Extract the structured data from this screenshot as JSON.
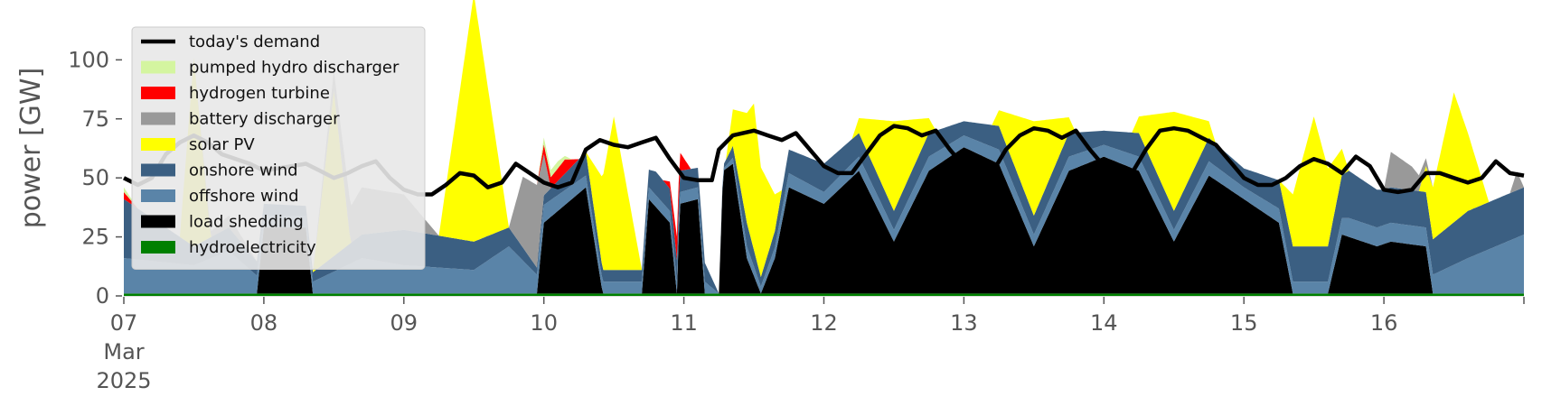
{
  "chart_data": {
    "type": "area",
    "ylabel": "power [GW]",
    "xlabel": "",
    "xlim": [
      0,
      10
    ],
    "ylim": [
      0,
      120
    ],
    "y_ticks": [
      0,
      25,
      50,
      75,
      100
    ],
    "x_ticks": [
      {
        "x": 0,
        "lines": [
          "07",
          "Mar",
          "2025"
        ]
      },
      {
        "x": 1,
        "lines": [
          "08"
        ]
      },
      {
        "x": 2,
        "lines": [
          "09"
        ]
      },
      {
        "x": 3,
        "lines": [
          "10"
        ]
      },
      {
        "x": 4,
        "lines": [
          "11"
        ]
      },
      {
        "x": 5,
        "lines": [
          "12"
        ]
      },
      {
        "x": 6,
        "lines": [
          "13"
        ]
      },
      {
        "x": 7,
        "lines": [
          "14"
        ]
      },
      {
        "x": 8,
        "lines": [
          "15"
        ]
      },
      {
        "x": 9,
        "lines": [
          "16"
        ]
      }
    ],
    "x_unit": "days from 07 Mar 2025 00:00",
    "legend_position": "upper left",
    "legend_entries": [
      {
        "label": "today's demand",
        "color": "#000000",
        "kind": "line"
      },
      {
        "label": "pumped hydro discharger",
        "color": "#d4f5a0",
        "kind": "patch"
      },
      {
        "label": "hydrogen turbine",
        "color": "#ff0000",
        "kind": "patch"
      },
      {
        "label": "battery discharger",
        "color": "#999999",
        "kind": "patch"
      },
      {
        "label": "solar PV",
        "color": "#ffff00",
        "kind": "patch"
      },
      {
        "label": "onshore wind",
        "color": "#3b5f82",
        "kind": "patch"
      },
      {
        "label": "offshore wind",
        "color": "#5a84a8",
        "kind": "patch"
      },
      {
        "label": "load shedding",
        "color": "#000000",
        "kind": "patch"
      },
      {
        "label": "hydroelectricity",
        "color": "#008000",
        "kind": "patch"
      }
    ],
    "series": [
      {
        "name": "hydroelectricity",
        "color": "#008000",
        "points": [
          [
            0,
            1
          ],
          [
            1,
            1
          ],
          [
            2,
            1
          ],
          [
            3,
            1
          ],
          [
            4,
            1
          ],
          [
            5,
            1
          ],
          [
            6,
            1
          ],
          [
            7,
            1
          ],
          [
            8,
            1
          ],
          [
            9,
            1
          ],
          [
            10,
            1
          ]
        ]
      },
      {
        "name": "load shedding",
        "color": "#000000",
        "points": [
          [
            0,
            0
          ],
          [
            0.95,
            0
          ],
          [
            1.0,
            28
          ],
          [
            1.3,
            28
          ],
          [
            1.35,
            0
          ],
          [
            2.95,
            0
          ],
          [
            3.0,
            30
          ],
          [
            3.3,
            45
          ],
          [
            3.42,
            0
          ],
          [
            3.7,
            0
          ],
          [
            3.75,
            40
          ],
          [
            3.9,
            30
          ],
          [
            3.95,
            0
          ],
          [
            3.97,
            38
          ],
          [
            4.1,
            40
          ],
          [
            4.15,
            0
          ],
          [
            4.25,
            0
          ],
          [
            4.28,
            52
          ],
          [
            4.35,
            55
          ],
          [
            4.45,
            15
          ],
          [
            4.55,
            0
          ],
          [
            4.65,
            15
          ],
          [
            4.75,
            45
          ],
          [
            5.0,
            38
          ],
          [
            5.25,
            52
          ],
          [
            5.5,
            22
          ],
          [
            5.75,
            52
          ],
          [
            6.0,
            62
          ],
          [
            6.25,
            55
          ],
          [
            6.5,
            20
          ],
          [
            6.75,
            52
          ],
          [
            7.0,
            58
          ],
          [
            7.25,
            52
          ],
          [
            7.5,
            22
          ],
          [
            7.75,
            50
          ],
          [
            8.0,
            40
          ],
          [
            8.25,
            30
          ],
          [
            8.35,
            0
          ],
          [
            8.6,
            0
          ],
          [
            8.7,
            25
          ],
          [
            8.95,
            20
          ],
          [
            9.05,
            22
          ],
          [
            9.3,
            20
          ],
          [
            9.35,
            0
          ],
          [
            10,
            0
          ]
        ]
      },
      {
        "name": "offshore wind",
        "color": "#5a84a8",
        "points": [
          [
            0,
            15
          ],
          [
            0.5,
            12
          ],
          [
            0.75,
            18
          ],
          [
            1.0,
            5
          ],
          [
            1.35,
            5
          ],
          [
            1.7,
            15
          ],
          [
            2.0,
            12
          ],
          [
            2.5,
            10
          ],
          [
            2.75,
            20
          ],
          [
            2.95,
            8
          ],
          [
            3.3,
            5
          ],
          [
            3.42,
            5
          ],
          [
            3.7,
            5
          ],
          [
            3.8,
            5
          ],
          [
            4.15,
            5
          ],
          [
            4.25,
            0
          ],
          [
            4.45,
            5
          ],
          [
            4.55,
            3
          ],
          [
            4.75,
            6
          ],
          [
            5.0,
            5
          ],
          [
            5.25,
            6
          ],
          [
            5.5,
            5
          ],
          [
            5.75,
            6
          ],
          [
            6.0,
            5
          ],
          [
            6.25,
            6
          ],
          [
            6.5,
            5
          ],
          [
            6.75,
            6
          ],
          [
            7.0,
            5
          ],
          [
            7.25,
            6
          ],
          [
            7.5,
            5
          ],
          [
            7.75,
            6
          ],
          [
            8.0,
            5
          ],
          [
            8.25,
            6
          ],
          [
            8.35,
            5
          ],
          [
            8.6,
            5
          ],
          [
            8.75,
            8
          ],
          [
            9.35,
            8
          ],
          [
            9.6,
            15
          ],
          [
            10,
            25
          ]
        ]
      },
      {
        "name": "onshore wind",
        "color": "#3b5f82",
        "points": [
          [
            0,
            25
          ],
          [
            0.5,
            8
          ],
          [
            0.75,
            10
          ],
          [
            1.0,
            5
          ],
          [
            1.35,
            4
          ],
          [
            1.7,
            10
          ],
          [
            2.0,
            15
          ],
          [
            2.5,
            12
          ],
          [
            2.75,
            8
          ],
          [
            2.95,
            3
          ],
          [
            3.3,
            10
          ],
          [
            3.42,
            5
          ],
          [
            3.7,
            5
          ],
          [
            3.8,
            10
          ],
          [
            4.15,
            8
          ],
          [
            4.25,
            0
          ],
          [
            4.45,
            10
          ],
          [
            4.55,
            4
          ],
          [
            4.75,
            10
          ],
          [
            5.0,
            12
          ],
          [
            5.25,
            10
          ],
          [
            5.5,
            8
          ],
          [
            5.75,
            10
          ],
          [
            6.0,
            6
          ],
          [
            6.25,
            10
          ],
          [
            6.5,
            8
          ],
          [
            6.75,
            10
          ],
          [
            7.0,
            6
          ],
          [
            7.25,
            10
          ],
          [
            7.5,
            8
          ],
          [
            7.75,
            10
          ],
          [
            8.0,
            8
          ],
          [
            8.25,
            12
          ],
          [
            8.35,
            15
          ],
          [
            8.6,
            15
          ],
          [
            8.75,
            20
          ],
          [
            9.0,
            15
          ],
          [
            9.35,
            15
          ],
          [
            9.6,
            20
          ],
          [
            10,
            20
          ]
        ]
      },
      {
        "name": "solar PV",
        "color": "#ffff00",
        "points": [
          [
            0,
            0
          ],
          [
            0.4,
            0
          ],
          [
            0.5,
            80
          ],
          [
            0.62,
            0
          ],
          [
            1.35,
            0
          ],
          [
            1.5,
            70
          ],
          [
            1.62,
            0
          ],
          [
            2.25,
            0
          ],
          [
            2.5,
            105
          ],
          [
            2.75,
            0
          ],
          [
            3.3,
            0
          ],
          [
            3.5,
            65
          ],
          [
            3.7,
            0
          ],
          [
            4.3,
            0
          ],
          [
            4.5,
            62
          ],
          [
            4.7,
            0
          ],
          [
            5.2,
            0
          ],
          [
            5.5,
            38
          ],
          [
            5.8,
            0
          ],
          [
            6.2,
            0
          ],
          [
            6.5,
            40
          ],
          [
            6.8,
            0
          ],
          [
            7.2,
            0
          ],
          [
            7.5,
            42
          ],
          [
            7.8,
            0
          ],
          [
            8.25,
            0
          ],
          [
            8.5,
            55
          ],
          [
            8.75,
            0
          ],
          [
            9.25,
            0
          ],
          [
            9.5,
            55
          ],
          [
            9.75,
            0
          ],
          [
            10,
            0
          ]
        ]
      },
      {
        "name": "battery discharger",
        "color": "#999999",
        "points": [
          [
            0,
            0
          ],
          [
            0.5,
            0
          ],
          [
            0.75,
            5
          ],
          [
            0.95,
            0
          ],
          [
            1.35,
            0
          ],
          [
            1.7,
            20
          ],
          [
            2.0,
            15
          ],
          [
            2.25,
            0
          ],
          [
            2.75,
            0
          ],
          [
            2.85,
            30
          ],
          [
            2.95,
            35
          ],
          [
            3.05,
            0
          ],
          [
            4.8,
            0
          ],
          [
            9.0,
            0
          ],
          [
            9.05,
            15
          ],
          [
            9.2,
            10
          ],
          [
            9.35,
            0
          ],
          [
            9.9,
            0
          ],
          [
            9.95,
            8
          ],
          [
            10,
            0
          ]
        ]
      },
      {
        "name": "hydrogen turbine",
        "color": "#ff0000",
        "points": [
          [
            0,
            3
          ],
          [
            0.1,
            0
          ],
          [
            2.95,
            0
          ],
          [
            3.0,
            4
          ],
          [
            3.15,
            6
          ],
          [
            3.25,
            0
          ],
          [
            3.85,
            0
          ],
          [
            3.9,
            3
          ],
          [
            3.95,
            10
          ],
          [
            4.0,
            5
          ],
          [
            4.05,
            0
          ],
          [
            10,
            0
          ]
        ]
      },
      {
        "name": "pumped hydro discharger",
        "color": "#d4f5a0",
        "points": [
          [
            0,
            2
          ],
          [
            0.1,
            0
          ],
          [
            2.95,
            0
          ],
          [
            3.0,
            3
          ],
          [
            3.1,
            3
          ],
          [
            3.2,
            0
          ],
          [
            10,
            0
          ]
        ]
      }
    ],
    "demand": {
      "name": "today's demand",
      "color": "#000000",
      "points": [
        [
          0,
          50
        ],
        [
          0.1,
          47
        ],
        [
          0.2,
          50
        ],
        [
          0.3,
          60
        ],
        [
          0.4,
          65
        ],
        [
          0.5,
          68
        ],
        [
          0.6,
          65
        ],
        [
          0.7,
          60
        ],
        [
          0.8,
          58
        ],
        [
          0.9,
          56
        ],
        [
          1.0,
          53
        ],
        [
          1.1,
          54
        ],
        [
          1.2,
          55
        ],
        [
          1.3,
          56
        ],
        [
          1.4,
          53
        ],
        [
          1.5,
          50
        ],
        [
          1.6,
          52
        ],
        [
          1.7,
          55
        ],
        [
          1.8,
          57
        ],
        [
          1.9,
          50
        ],
        [
          2.0,
          45
        ],
        [
          2.1,
          43
        ],
        [
          2.2,
          43
        ],
        [
          2.3,
          47
        ],
        [
          2.4,
          52
        ],
        [
          2.5,
          51
        ],
        [
          2.6,
          46
        ],
        [
          2.7,
          48
        ],
        [
          2.8,
          56
        ],
        [
          2.9,
          52
        ],
        [
          3.0,
          48
        ],
        [
          3.1,
          46
        ],
        [
          3.2,
          48
        ],
        [
          3.3,
          62
        ],
        [
          3.4,
          66
        ],
        [
          3.5,
          64
        ],
        [
          3.6,
          63
        ],
        [
          3.7,
          65
        ],
        [
          3.8,
          67
        ],
        [
          3.9,
          58
        ],
        [
          4.0,
          50
        ],
        [
          4.1,
          49
        ],
        [
          4.2,
          49
        ],
        [
          4.25,
          62
        ],
        [
          4.35,
          68
        ],
        [
          4.5,
          70
        ],
        [
          4.6,
          68
        ],
        [
          4.7,
          66
        ],
        [
          4.8,
          69
        ],
        [
          4.9,
          62
        ],
        [
          5.0,
          55
        ],
        [
          5.1,
          52
        ],
        [
          5.2,
          52
        ],
        [
          5.3,
          60
        ],
        [
          5.4,
          68
        ],
        [
          5.5,
          72
        ],
        [
          5.6,
          71
        ],
        [
          5.7,
          68
        ],
        [
          5.8,
          70
        ],
        [
          5.9,
          62
        ],
        [
          6.0,
          55
        ],
        [
          6.1,
          52
        ],
        [
          6.2,
          52
        ],
        [
          6.3,
          62
        ],
        [
          6.4,
          68
        ],
        [
          6.5,
          71
        ],
        [
          6.6,
          70
        ],
        [
          6.7,
          67
        ],
        [
          6.8,
          70
        ],
        [
          6.9,
          62
        ],
        [
          7.0,
          55
        ],
        [
          7.1,
          52
        ],
        [
          7.2,
          52
        ],
        [
          7.3,
          62
        ],
        [
          7.4,
          70
        ],
        [
          7.5,
          71
        ],
        [
          7.6,
          70
        ],
        [
          7.7,
          67
        ],
        [
          7.8,
          64
        ],
        [
          7.9,
          57
        ],
        [
          8.0,
          50
        ],
        [
          8.1,
          47
        ],
        [
          8.2,
          47
        ],
        [
          8.3,
          50
        ],
        [
          8.4,
          55
        ],
        [
          8.5,
          58
        ],
        [
          8.6,
          56
        ],
        [
          8.7,
          52
        ],
        [
          8.8,
          59
        ],
        [
          8.9,
          55
        ],
        [
          9.0,
          45
        ],
        [
          9.1,
          44
        ],
        [
          9.2,
          45
        ],
        [
          9.3,
          52
        ],
        [
          9.4,
          52
        ],
        [
          9.5,
          50
        ],
        [
          9.6,
          48
        ],
        [
          9.7,
          50
        ],
        [
          9.8,
          57
        ],
        [
          9.9,
          52
        ],
        [
          10,
          51
        ]
      ]
    }
  }
}
